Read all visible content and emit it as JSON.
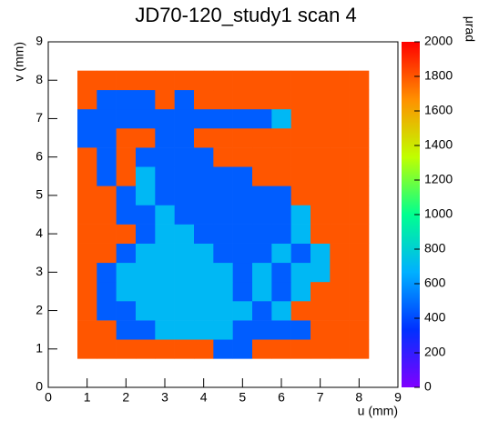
{
  "chart_data": {
    "type": "heatmap",
    "title": "JD70-120_study1 scan 4",
    "xlabel": "u (mm)",
    "ylabel": "v (mm)",
    "zlabel": "μrad",
    "xlim": [
      0,
      9
    ],
    "ylim": [
      0,
      9
    ],
    "zlim": [
      0,
      2000
    ],
    "xticks": [
      0,
      1,
      2,
      3,
      4,
      5,
      6,
      7,
      8,
      9
    ],
    "yticks": [
      0,
      1,
      2,
      3,
      4,
      5,
      6,
      7,
      8,
      9
    ],
    "zticks": [
      0,
      200,
      400,
      600,
      800,
      1000,
      1200,
      1400,
      1600,
      1800,
      2000
    ],
    "colormap": [
      "#8000ff",
      "#0030ff",
      "#00b0ff",
      "#00ff90",
      "#c0ff00",
      "#ff9000",
      "#ff0000"
    ],
    "xbins": [
      0.75,
      1.25,
      1.75,
      2.25,
      2.75,
      3.25,
      3.75,
      4.25,
      4.75,
      5.25,
      5.75,
      6.25,
      6.75,
      7.25,
      7.75,
      8.25
    ],
    "ybins": [
      0.75,
      1.25,
      1.75,
      2.25,
      2.75,
      3.25,
      3.75,
      4.25,
      4.75,
      5.25,
      5.75,
      6.25,
      6.75,
      7.25,
      7.75,
      8.25
    ],
    "z": [
      [
        1800,
        1800,
        1800,
        1800,
        1800,
        1800,
        1800,
        450,
        450,
        1800,
        1800,
        1800,
        1800,
        1800,
        1800
      ],
      [
        1800,
        1800,
        450,
        450,
        700,
        700,
        700,
        700,
        450,
        450,
        450,
        450,
        1800,
        1800,
        1800
      ],
      [
        1800,
        450,
        450,
        700,
        700,
        700,
        700,
        700,
        700,
        450,
        700,
        1800,
        1800,
        1800,
        1800
      ],
      [
        1800,
        450,
        700,
        700,
        700,
        700,
        700,
        700,
        450,
        700,
        450,
        700,
        1800,
        1800,
        1800
      ],
      [
        1800,
        450,
        700,
        700,
        700,
        700,
        700,
        700,
        450,
        700,
        450,
        700,
        700,
        1800,
        1800
      ],
      [
        1800,
        1800,
        450,
        700,
        700,
        700,
        700,
        450,
        450,
        450,
        700,
        450,
        700,
        1800,
        1800
      ],
      [
        1800,
        1800,
        1800,
        450,
        700,
        700,
        450,
        450,
        450,
        450,
        450,
        700,
        1800,
        1800,
        1800
      ],
      [
        1800,
        1800,
        450,
        450,
        700,
        450,
        450,
        450,
        450,
        450,
        450,
        700,
        1800,
        1800,
        1800
      ],
      [
        1800,
        1800,
        450,
        700,
        450,
        450,
        450,
        450,
        450,
        450,
        450,
        1800,
        1800,
        1800,
        1800
      ],
      [
        1800,
        450,
        1800,
        700,
        450,
        450,
        450,
        450,
        450,
        1800,
        1800,
        1800,
        1800,
        1800,
        1800
      ],
      [
        1800,
        450,
        1800,
        450,
        450,
        450,
        450,
        1800,
        1800,
        1800,
        1800,
        1800,
        1800,
        1800,
        1800
      ],
      [
        450,
        450,
        1800,
        1800,
        450,
        450,
        1800,
        1800,
        1800,
        1800,
        1800,
        1800,
        1800,
        1800,
        1800
      ],
      [
        450,
        450,
        450,
        450,
        450,
        450,
        450,
        450,
        450,
        450,
        700,
        1800,
        1800,
        1800,
        1800
      ],
      [
        1800,
        450,
        450,
        450,
        1800,
        450,
        1800,
        1800,
        1800,
        1800,
        1800,
        1800,
        1800,
        1800,
        1800
      ],
      [
        1800,
        1800,
        1800,
        1800,
        1800,
        1800,
        1800,
        1800,
        1800,
        1800,
        1800,
        1800,
        1800,
        1800,
        1800
      ]
    ]
  }
}
